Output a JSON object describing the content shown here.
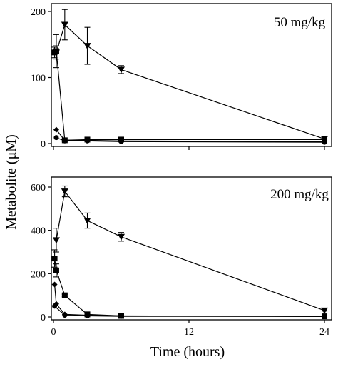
{
  "chart_data": [
    {
      "type": "line",
      "title": "50 mg/kg",
      "ylabel": "Metabolite (μM)",
      "xlabel": "",
      "xlim": [
        0,
        24
      ],
      "ylim": [
        0,
        200
      ],
      "yticks": [
        0,
        100,
        200
      ],
      "xticks": [
        0,
        12,
        24
      ],
      "show_x_tick_labels": false,
      "series": [
        {
          "marker": "triangle-down",
          "x": [
            0.25,
            1,
            3,
            6,
            24
          ],
          "y": [
            138,
            180,
            148,
            112,
            7
          ],
          "err": [
            10,
            23,
            28,
            6,
            2
          ]
        },
        {
          "marker": "square",
          "x": [
            0.1,
            0.25,
            1,
            3,
            6,
            24
          ],
          "y": [
            138,
            140,
            5,
            6,
            6,
            6
          ],
          "err": [
            8,
            25,
            2,
            2,
            2,
            2
          ]
        },
        {
          "marker": "diamond",
          "x": [
            0.25,
            1,
            3,
            6,
            24
          ],
          "y": [
            21,
            5,
            5,
            4,
            3
          ],
          "err": [
            0,
            0,
            0,
            0,
            0
          ]
        },
        {
          "marker": "circle",
          "x": [
            0.25,
            1,
            3,
            6,
            24
          ],
          "y": [
            9,
            4,
            4,
            3,
            2
          ],
          "err": [
            0,
            0,
            0,
            0,
            0
          ]
        }
      ]
    },
    {
      "type": "line",
      "title": "200 mg/kg",
      "ylabel": "Metabolite (μM)",
      "xlabel": "Time (hours)",
      "xlim": [
        0,
        24
      ],
      "ylim": [
        0,
        600
      ],
      "yticks": [
        0,
        200,
        400,
        600
      ],
      "xticks": [
        0,
        12,
        24
      ],
      "show_x_tick_labels": true,
      "series": [
        {
          "marker": "triangle-down",
          "x": [
            0.25,
            1,
            3,
            6,
            24
          ],
          "y": [
            355,
            580,
            445,
            370,
            30
          ],
          "err": [
            55,
            25,
            35,
            20,
            3
          ]
        },
        {
          "marker": "square",
          "x": [
            0.1,
            0.25,
            1,
            3,
            6,
            24
          ],
          "y": [
            270,
            215,
            100,
            12,
            5,
            3
          ],
          "err": [
            40,
            30,
            5,
            3,
            2,
            2
          ]
        },
        {
          "marker": "diamond",
          "x": [
            0.1,
            0.25,
            1,
            3,
            6,
            24
          ],
          "y": [
            150,
            60,
            12,
            8,
            5,
            3
          ],
          "err": [
            0,
            0,
            0,
            0,
            0,
            0
          ]
        },
        {
          "marker": "circle",
          "x": [
            0.1,
            1,
            3,
            6,
            24
          ],
          "y": [
            50,
            8,
            5,
            3,
            2
          ],
          "err": [
            0,
            0,
            0,
            0,
            0
          ]
        }
      ]
    }
  ]
}
